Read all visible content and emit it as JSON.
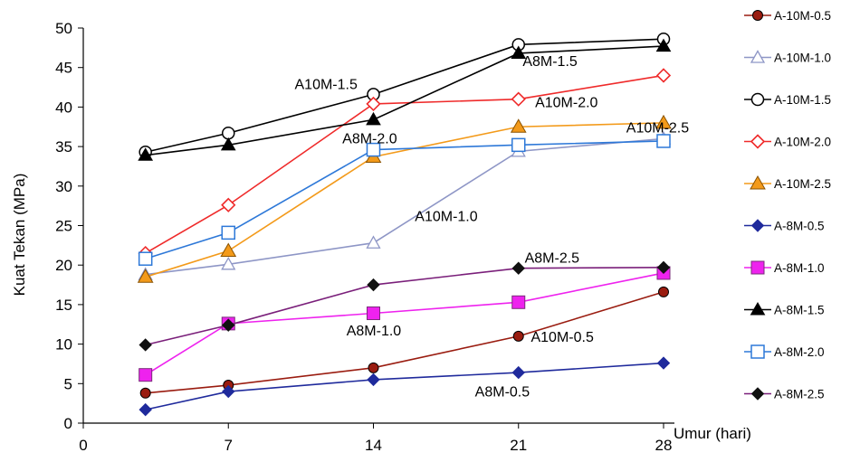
{
  "chart_data": {
    "type": "line",
    "xlabel": "Umur (hari)",
    "ylabel": "Kuat Tekan (MPa)",
    "x": [
      3,
      7,
      14,
      21,
      28
    ],
    "xlim": [
      0,
      28
    ],
    "ylim": [
      0,
      50
    ],
    "xticks": [
      "0",
      "7",
      "14",
      "21",
      "28"
    ],
    "yticks": [
      "0",
      "5",
      "10",
      "15",
      "20",
      "25",
      "30",
      "35",
      "40",
      "45",
      "50"
    ],
    "grid": false,
    "legend_position": "right",
    "series": [
      {
        "name": "A-10M-0.5",
        "color": "#9a1c10",
        "marker": "circle-filled",
        "values": [
          3.8,
          4.8,
          7.0,
          11.0,
          16.6
        ]
      },
      {
        "name": "A-10M-1.0",
        "color": "#8e96c6",
        "marker": "triangle-open",
        "values": [
          18.8,
          20.1,
          22.8,
          34.4,
          36.0
        ]
      },
      {
        "name": "A-10M-1.5",
        "color": "#000000",
        "marker": "circle-open",
        "values": [
          34.3,
          36.7,
          41.6,
          47.9,
          48.6
        ]
      },
      {
        "name": "A-10M-2.0",
        "color": "#ef2a2a",
        "marker": "diamond-open",
        "values": [
          21.5,
          27.6,
          40.4,
          41.0,
          44.0
        ]
      },
      {
        "name": "A-10M-2.5",
        "color": "#f39a1a",
        "marker": "triangle-filled",
        "values": [
          18.5,
          21.8,
          33.7,
          37.5,
          38.0
        ]
      },
      {
        "name": "A-8M-0.5",
        "color": "#1f2a9c",
        "marker": "diamond-filled",
        "values": [
          1.7,
          4.0,
          5.5,
          6.4,
          7.6
        ]
      },
      {
        "name": "A-8M-1.0",
        "color": "#ee22ee",
        "marker": "square-filled",
        "values": [
          6.1,
          12.6,
          13.9,
          15.3,
          19.0
        ]
      },
      {
        "name": "A-8M-1.5",
        "color": "#000000",
        "marker": "triangle-black",
        "values": [
          33.9,
          35.2,
          38.4,
          46.8,
          47.7
        ]
      },
      {
        "name": "A-8M-2.0",
        "color": "#2d78d8",
        "marker": "square-open",
        "values": [
          20.8,
          24.1,
          34.6,
          35.2,
          35.7
        ]
      },
      {
        "name": "A-8M-2.5",
        "color": "#7a1f7a",
        "marker": "diamond-filled",
        "values": [
          9.9,
          12.4,
          17.5,
          19.6,
          19.7
        ]
      }
    ],
    "annotations": [
      {
        "text": "A8M-1.5",
        "x": 21.2,
        "y": 45.2
      },
      {
        "text": "A10M-1.5",
        "x": 10.2,
        "y": 42.3
      },
      {
        "text": "A10M-2.0",
        "x": 21.8,
        "y": 40.0
      },
      {
        "text": "A10M-2.5",
        "x": 26.2,
        "y": 36.8
      },
      {
        "text": "A8M-2.0",
        "x": 12.5,
        "y": 35.4
      },
      {
        "text": "A10M-1.0",
        "x": 16.0,
        "y": 25.6
      },
      {
        "text": "A8M-2.5",
        "x": 21.3,
        "y": 20.3
      },
      {
        "text": "A8M-1.0",
        "x": 12.7,
        "y": 11.1
      },
      {
        "text": "A10M-0.5",
        "x": 21.6,
        "y": 10.3
      },
      {
        "text": "A8M-0.5",
        "x": 18.9,
        "y": 3.4
      }
    ]
  }
}
